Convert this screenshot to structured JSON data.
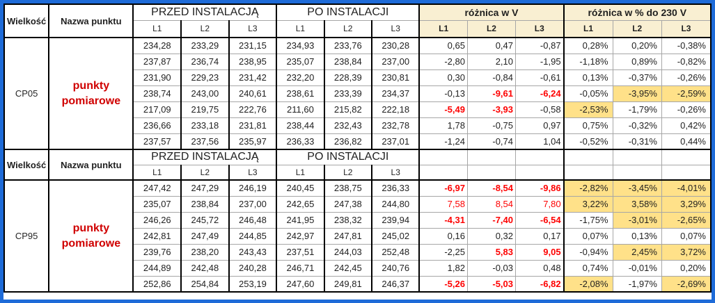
{
  "colors": {
    "frame_blue": "#1e6bd8",
    "header_cream": "#f9efd2",
    "highlight_yellow": "#ffe189",
    "alert_red": "#fe0000",
    "label_red": "#d00000",
    "grid_gray": "#a6a6a6",
    "border_black": "#000000"
  },
  "header": {
    "col_wielkosc": "Wielkość",
    "col_nazwa": "Nazwa punktu",
    "group_przed": "PRZED INSTALACJĄ",
    "group_po": "PO INSTALACJI",
    "group_dv": "różnica w V",
    "group_dp": "różnica w % do 230 V",
    "phases": [
      "L1",
      "L2",
      "L3"
    ]
  },
  "sections": [
    {
      "id": "cp05",
      "wielkosc": "CP05",
      "nazwa_punktu": "punkty pomiarowe",
      "rows": [
        {
          "przed": [
            "234,28",
            "233,29",
            "231,15"
          ],
          "po": [
            "234,93",
            "233,76",
            "230,28"
          ],
          "dv": [
            "0,65",
            "0,47",
            "-0,87"
          ],
          "dv_style": [
            "",
            "",
            ""
          ],
          "dp": [
            "0,28%",
            "0,20%",
            "-0,38%"
          ],
          "dp_hl": [
            false,
            false,
            false
          ]
        },
        {
          "przed": [
            "237,87",
            "236,74",
            "238,95"
          ],
          "po": [
            "235,07",
            "238,84",
            "237,00"
          ],
          "dv": [
            "-2,80",
            "2,10",
            "-1,95"
          ],
          "dv_style": [
            "",
            "",
            ""
          ],
          "dp": [
            "-1,18%",
            "0,89%",
            "-0,82%"
          ],
          "dp_hl": [
            false,
            false,
            false
          ]
        },
        {
          "przed": [
            "231,90",
            "229,23",
            "231,42"
          ],
          "po": [
            "232,20",
            "228,39",
            "230,81"
          ],
          "dv": [
            "0,30",
            "-0,84",
            "-0,61"
          ],
          "dv_style": [
            "",
            "",
            ""
          ],
          "dp": [
            "0,13%",
            "-0,37%",
            "-0,26%"
          ],
          "dp_hl": [
            false,
            false,
            false
          ]
        },
        {
          "przed": [
            "238,74",
            "243,00",
            "240,61"
          ],
          "po": [
            "238,61",
            "233,39",
            "234,37"
          ],
          "dv": [
            "-0,13",
            "-9,61",
            "-6,24"
          ],
          "dv_style": [
            "",
            "redbold",
            "redbold"
          ],
          "dp": [
            "-0,05%",
            "-3,95%",
            "-2,59%"
          ],
          "dp_hl": [
            false,
            true,
            true
          ]
        },
        {
          "przed": [
            "217,09",
            "219,75",
            "222,76"
          ],
          "po": [
            "211,60",
            "215,82",
            "222,18"
          ],
          "dv": [
            "-5,49",
            "-3,93",
            "-0,58"
          ],
          "dv_style": [
            "redbold",
            "redbold",
            ""
          ],
          "dp": [
            "-2,53%",
            "-1,79%",
            "-0,26%"
          ],
          "dp_hl": [
            true,
            false,
            false
          ]
        },
        {
          "przed": [
            "236,66",
            "233,18",
            "231,81"
          ],
          "po": [
            "238,44",
            "232,43",
            "232,78"
          ],
          "dv": [
            "1,78",
            "-0,75",
            "0,97"
          ],
          "dv_style": [
            "",
            "",
            ""
          ],
          "dp": [
            "0,75%",
            "-0,32%",
            "0,42%"
          ],
          "dp_hl": [
            false,
            false,
            false
          ]
        },
        {
          "przed": [
            "237,57",
            "237,56",
            "235,97"
          ],
          "po": [
            "236,33",
            "236,82",
            "237,01"
          ],
          "dv": [
            "-1,24",
            "-0,74",
            "1,04"
          ],
          "dv_style": [
            "",
            "",
            ""
          ],
          "dp": [
            "-0,52%",
            "-0,31%",
            "0,44%"
          ],
          "dp_hl": [
            false,
            false,
            false
          ]
        }
      ]
    },
    {
      "id": "cp95",
      "wielkosc": "CP95",
      "nazwa_punktu": "punkty pomiarowe",
      "rows": [
        {
          "przed": [
            "247,42",
            "247,29",
            "246,19"
          ],
          "po": [
            "240,45",
            "238,75",
            "236,33"
          ],
          "dv": [
            "-6,97",
            "-8,54",
            "-9,86"
          ],
          "dv_style": [
            "redbold",
            "redbold",
            "redbold"
          ],
          "dp": [
            "-2,82%",
            "-3,45%",
            "-4,01%"
          ],
          "dp_hl": [
            true,
            true,
            true
          ]
        },
        {
          "przed": [
            "235,07",
            "238,84",
            "237,00"
          ],
          "po": [
            "242,65",
            "247,38",
            "244,80"
          ],
          "dv": [
            "7,58",
            "8,54",
            "7,80"
          ],
          "dv_style": [
            "red",
            "red",
            "red"
          ],
          "dp": [
            "3,22%",
            "3,58%",
            "3,29%"
          ],
          "dp_hl": [
            true,
            true,
            true
          ]
        },
        {
          "przed": [
            "246,26",
            "245,72",
            "246,48"
          ],
          "po": [
            "241,95",
            "238,32",
            "239,94"
          ],
          "dv": [
            "-4,31",
            "-7,40",
            "-6,54"
          ],
          "dv_style": [
            "redbold",
            "redbold",
            "redbold"
          ],
          "dp": [
            "-1,75%",
            "-3,01%",
            "-2,65%"
          ],
          "dp_hl": [
            false,
            true,
            true
          ]
        },
        {
          "przed": [
            "242,81",
            "247,49",
            "244,85"
          ],
          "po": [
            "242,97",
            "247,81",
            "245,02"
          ],
          "dv": [
            "0,16",
            "0,32",
            "0,17"
          ],
          "dv_style": [
            "",
            "",
            ""
          ],
          "dp": [
            "0,07%",
            "0,13%",
            "0,07%"
          ],
          "dp_hl": [
            false,
            false,
            false
          ]
        },
        {
          "przed": [
            "239,76",
            "238,20",
            "243,43"
          ],
          "po": [
            "237,51",
            "244,03",
            "252,48"
          ],
          "dv": [
            "-2,25",
            "5,83",
            "9,05"
          ],
          "dv_style": [
            "",
            "redbold",
            "redbold"
          ],
          "dp": [
            "-0,94%",
            "2,45%",
            "3,72%"
          ],
          "dp_hl": [
            false,
            true,
            true
          ]
        },
        {
          "przed": [
            "244,89",
            "242,48",
            "240,28"
          ],
          "po": [
            "246,71",
            "242,45",
            "240,76"
          ],
          "dv": [
            "1,82",
            "-0,03",
            "0,48"
          ],
          "dv_style": [
            "",
            "",
            ""
          ],
          "dp": [
            "0,74%",
            "-0,01%",
            "0,20%"
          ],
          "dp_hl": [
            false,
            false,
            false
          ]
        },
        {
          "przed": [
            "252,86",
            "254,84",
            "253,19"
          ],
          "po": [
            "247,60",
            "249,81",
            "246,37"
          ],
          "dv": [
            "-5,26",
            "-5,03",
            "-6,82"
          ],
          "dv_style": [
            "redbold",
            "redbold",
            "redbold"
          ],
          "dp": [
            "-2,08%",
            "-1,97%",
            "-2,69%"
          ],
          "dp_hl": [
            true,
            false,
            true
          ]
        }
      ]
    }
  ]
}
